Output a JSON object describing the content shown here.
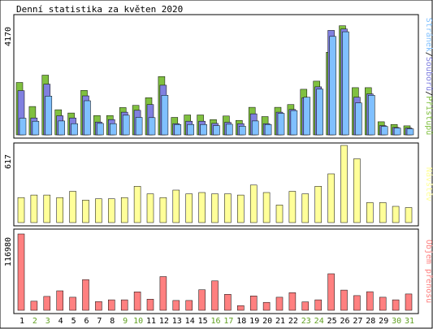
{
  "title": "Denní statistika za květen 2020",
  "colors": {
    "hits": "#80c040",
    "files": "#8080e0",
    "pages": "#80c0ff",
    "visits": "#ffff99",
    "kbytes": "#ff8080",
    "weekend": "#60a020",
    "weekday": "#000000",
    "frame": "#000000",
    "panel_border": "#c0c0c0"
  },
  "panels": {
    "top": {
      "max_label": "4170",
      "side_label_parts": [
        {
          "text": "Stránek",
          "color_key": "pages"
        },
        {
          "text": "/",
          "color_key": "weekday"
        },
        {
          "text": "Souborů",
          "color_key": "files"
        },
        {
          "text": "/",
          "color_key": "weekday"
        },
        {
          "text": "Přístupů",
          "color_key": "hits"
        }
      ]
    },
    "middle": {
      "max_label": "617",
      "side_label": "Návštěv"
    },
    "bottom": {
      "max_label": "116980",
      "side_label": "Objem přenosu"
    }
  },
  "chart_data": [
    {
      "type": "bar",
      "title": "Denní statistika za květen 2020",
      "categories": [
        "1",
        "2",
        "3",
        "4",
        "5",
        "6",
        "7",
        "8",
        "9",
        "10",
        "11",
        "12",
        "13",
        "14",
        "15",
        "16",
        "17",
        "18",
        "19",
        "20",
        "21",
        "22",
        "23",
        "24",
        "25",
        "26",
        "27",
        "28",
        "29",
        "30",
        "31"
      ],
      "weekend": [
        false,
        true,
        true,
        false,
        false,
        false,
        false,
        false,
        true,
        true,
        false,
        false,
        false,
        false,
        false,
        true,
        true,
        false,
        false,
        false,
        false,
        false,
        true,
        true,
        false,
        false,
        false,
        false,
        false,
        true,
        true
      ],
      "ylim": [
        0,
        4170
      ],
      "series": [
        {
          "name": "Přístupů",
          "color_key": "hits",
          "values": [
            1920,
            1040,
            2190,
            920,
            800,
            1630,
            710,
            710,
            1000,
            1080,
            1360,
            2140,
            640,
            730,
            730,
            560,
            690,
            530,
            1010,
            670,
            1010,
            1110,
            1670,
            1970,
            3030,
            4000,
            1730,
            1730,
            480,
            380,
            330
          ]
        },
        {
          "name": "Souborů",
          "color_key": "files",
          "values": [
            1620,
            620,
            1860,
            700,
            620,
            1430,
            470,
            560,
            830,
            900,
            1110,
            1820,
            410,
            500,
            500,
            420,
            460,
            410,
            770,
            410,
            830,
            930,
            1360,
            1760,
            3830,
            3880,
            1380,
            1500,
            340,
            270,
            250
          ]
        },
        {
          "name": "Stránek",
          "color_key": "pages",
          "values": [
            610,
            500,
            1420,
            510,
            410,
            1250,
            420,
            410,
            720,
            640,
            630,
            1450,
            380,
            380,
            380,
            340,
            390,
            320,
            510,
            380,
            790,
            890,
            1380,
            1680,
            3610,
            3780,
            1170,
            1450,
            310,
            250,
            220
          ]
        }
      ]
    },
    {
      "type": "bar",
      "categories": [
        "1",
        "2",
        "3",
        "4",
        "5",
        "6",
        "7",
        "8",
        "9",
        "10",
        "11",
        "12",
        "13",
        "14",
        "15",
        "16",
        "17",
        "18",
        "19",
        "20",
        "21",
        "22",
        "23",
        "24",
        "25",
        "26",
        "27",
        "28",
        "29",
        "30",
        "31"
      ],
      "ylim": [
        0,
        617
      ],
      "series": [
        {
          "name": "Návštěv",
          "color_key": "visits",
          "values": [
            200,
            220,
            220,
            200,
            250,
            180,
            190,
            190,
            200,
            290,
            230,
            200,
            260,
            230,
            240,
            230,
            230,
            220,
            300,
            240,
            140,
            250,
            230,
            290,
            390,
            617,
            510,
            160,
            160,
            130,
            120
          ]
        }
      ]
    },
    {
      "type": "bar",
      "categories": [
        "1",
        "2",
        "3",
        "4",
        "5",
        "6",
        "7",
        "8",
        "9",
        "10",
        "11",
        "12",
        "13",
        "14",
        "15",
        "16",
        "17",
        "18",
        "19",
        "20",
        "21",
        "22",
        "23",
        "24",
        "25",
        "26",
        "27",
        "28",
        "29",
        "30",
        "31"
      ],
      "ylim": [
        0,
        116980
      ],
      "series": [
        {
          "name": "Objem přenosu",
          "color_key": "kbytes",
          "values": [
            116980,
            13900,
            21300,
            29900,
            20000,
            47000,
            13500,
            16000,
            16000,
            28300,
            17000,
            51600,
            15000,
            15000,
            31500,
            45000,
            24500,
            7200,
            22000,
            12200,
            20000,
            27000,
            13000,
            16000,
            56000,
            31000,
            22500,
            28500,
            20000,
            16000,
            25000
          ]
        }
      ]
    }
  ]
}
